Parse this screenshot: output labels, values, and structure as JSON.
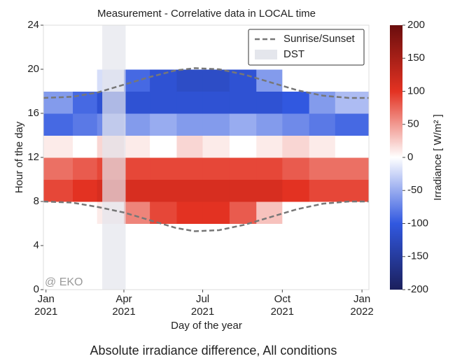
{
  "chart_data": {
    "type": "heatmap",
    "title": "Measurement - Correlative data  in LOCAL time",
    "caption": "Absolute irradiance difference, All conditions",
    "watermark": "@ EKO",
    "x_label": "Day of the year",
    "y_label": "Hour of the day",
    "xlim": [
      -3,
      373
    ],
    "ylim": [
      0,
      24
    ],
    "xticks": [
      {
        "value": 0,
        "label": "Jan\n2021"
      },
      {
        "value": 90,
        "label": "Apr\n2021"
      },
      {
        "value": 181,
        "label": "Jul\n2021"
      },
      {
        "value": 273,
        "label": "Oct\n2021"
      },
      {
        "value": 365,
        "label": "Jan\n2022"
      }
    ],
    "yticks": [
      0,
      4,
      8,
      12,
      16,
      20,
      24
    ],
    "x_bins": [
      -3,
      31,
      59,
      90,
      120,
      151,
      181,
      212,
      243,
      273,
      304,
      334,
      373
    ],
    "y_bins": [
      0,
      2,
      4,
      6,
      8,
      10,
      12,
      14,
      16,
      18,
      20,
      22,
      24
    ],
    "z": [
      [
        0,
        0,
        0,
        0,
        0,
        0,
        0,
        0,
        0,
        0,
        0,
        0
      ],
      [
        0,
        0,
        0,
        0,
        0,
        0,
        0,
        0,
        0,
        0,
        0,
        0
      ],
      [
        0,
        0,
        0,
        0,
        0,
        0,
        0,
        0,
        0,
        0,
        0,
        0
      ],
      [
        0,
        0,
        10,
        60,
        90,
        100,
        100,
        80,
        30,
        0,
        0,
        0
      ],
      [
        90,
        100,
        110,
        110,
        110,
        110,
        110,
        110,
        110,
        100,
        90,
        90
      ],
      [
        70,
        80,
        90,
        90,
        90,
        90,
        90,
        90,
        90,
        80,
        70,
        70
      ],
      [
        10,
        0,
        20,
        10,
        0,
        20,
        10,
        0,
        10,
        20,
        10,
        0
      ],
      [
        -90,
        -80,
        -70,
        -60,
        -50,
        -60,
        -60,
        -50,
        -60,
        -70,
        -80,
        -90
      ],
      [
        -60,
        -90,
        -110,
        -110,
        -110,
        -110,
        -110,
        -110,
        -110,
        -100,
        -60,
        -40
      ],
      [
        0,
        0,
        -20,
        -90,
        -110,
        -120,
        -120,
        -110,
        -60,
        0,
        0,
        0
      ],
      [
        0,
        0,
        0,
        0,
        0,
        0,
        0,
        0,
        0,
        0,
        0,
        0
      ],
      [
        0,
        0,
        0,
        0,
        0,
        0,
        0,
        0,
        0,
        0,
        0,
        0
      ]
    ],
    "colorbar_label": "Irradiance [ W/m² ]",
    "clim": [
      -200,
      200
    ],
    "cticks": [
      -200,
      -150,
      -100,
      -50,
      0,
      50,
      100,
      150,
      200
    ],
    "colorscale": [
      [
        -200,
        "#1b1f5c"
      ],
      [
        -100,
        "#3158e0"
      ],
      [
        0,
        "#ffffff"
      ],
      [
        100,
        "#e33222"
      ],
      [
        200,
        "#6a0d0d"
      ]
    ],
    "lines": {
      "name": "Sunrise/Sunset",
      "color": "#777777",
      "x": [
        -3,
        30,
        60,
        90,
        120,
        150,
        172,
        200,
        230,
        260,
        290,
        320,
        350,
        373
      ],
      "sunrise": [
        8.0,
        7.9,
        7.5,
        7.0,
        6.3,
        5.6,
        5.3,
        5.4,
        5.9,
        6.6,
        7.3,
        7.8,
        8.0,
        8.0
      ],
      "sunset": [
        17.4,
        17.5,
        17.9,
        18.6,
        19.3,
        19.9,
        20.1,
        20.0,
        19.5,
        18.8,
        18.1,
        17.6,
        17.4,
        17.4
      ]
    },
    "dst": {
      "name": "DST",
      "color": "#e4e6ec",
      "span": [
        65,
        92
      ]
    }
  }
}
